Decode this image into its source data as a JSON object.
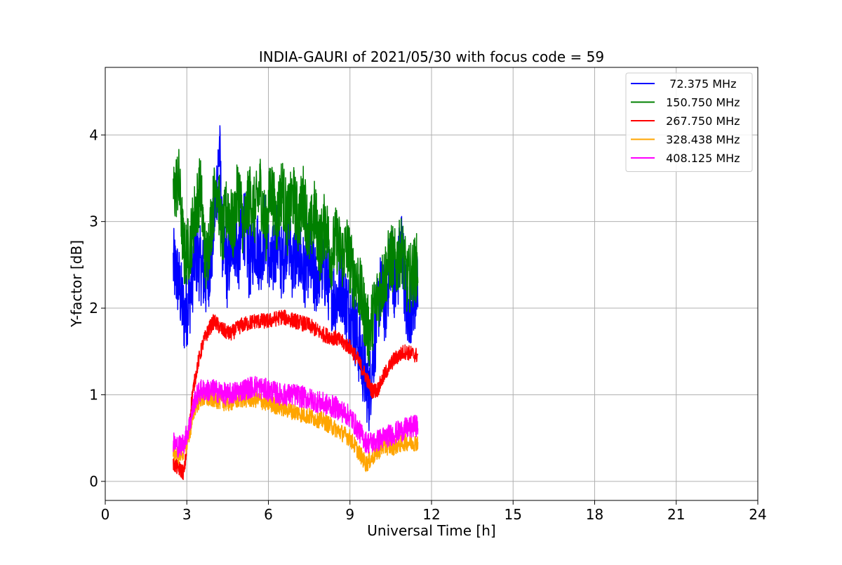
{
  "chart_data": {
    "type": "line",
    "title": "INDIA-GAURI of 2021/05/30 with focus code = 59",
    "xlabel": "Universal Time [h]",
    "ylabel": "Y-factor [dB]",
    "xlim": [
      0,
      24
    ],
    "ylim": [
      -0.22,
      4.78
    ],
    "xticks": [
      0,
      3,
      6,
      9,
      12,
      15,
      18,
      21,
      24
    ],
    "yticks": [
      0,
      1,
      2,
      3,
      4
    ],
    "grid": true,
    "legend_position": "top-right",
    "series": [
      {
        "name": "  72.375 MHz",
        "color": "#0000ff",
        "x": [
          2.5,
          2.7,
          2.9,
          3.1,
          3.3,
          3.5,
          3.7,
          3.9,
          4.1,
          4.2,
          4.3,
          4.5,
          4.7,
          4.9,
          5.1,
          5.3,
          5.5,
          5.7,
          5.9,
          6.1,
          6.3,
          6.5,
          6.7,
          6.9,
          7.1,
          7.3,
          7.5,
          7.7,
          7.9,
          8.1,
          8.3,
          8.5,
          8.7,
          8.9,
          9.1,
          9.3,
          9.5,
          9.7,
          9.9,
          10.1,
          10.3,
          10.5,
          10.7,
          10.9,
          11.1,
          11.3,
          11.5
        ],
        "y": [
          2.5,
          2.3,
          1.9,
          2.1,
          2.6,
          2.5,
          2.3,
          2.6,
          3.4,
          3.9,
          2.8,
          2.4,
          2.9,
          2.6,
          3.0,
          2.5,
          2.8,
          2.6,
          2.9,
          2.4,
          2.8,
          2.5,
          2.9,
          2.5,
          2.7,
          2.4,
          2.6,
          2.3,
          2.5,
          2.4,
          2.2,
          2.1,
          2.3,
          2.0,
          1.9,
          1.6,
          1.3,
          1.0,
          1.6,
          2.2,
          2.0,
          2.6,
          2.2,
          2.8,
          1.9,
          2.1,
          2.2
        ],
        "jitter": 0.45
      },
      {
        "name": " 150.750 MHz",
        "color": "#008000",
        "x": [
          2.5,
          2.7,
          2.9,
          3.1,
          3.3,
          3.5,
          3.7,
          3.9,
          4.1,
          4.3,
          4.5,
          4.7,
          4.9,
          5.1,
          5.3,
          5.5,
          5.7,
          5.9,
          6.1,
          6.3,
          6.5,
          6.7,
          6.9,
          7.1,
          7.3,
          7.5,
          7.7,
          7.9,
          8.1,
          8.3,
          8.5,
          8.7,
          8.9,
          9.1,
          9.3,
          9.5,
          9.7,
          9.9,
          10.1,
          10.3,
          10.5,
          10.7,
          10.9,
          11.1,
          11.3,
          11.5
        ],
        "y": [
          3.3,
          3.5,
          2.6,
          2.7,
          3.1,
          3.4,
          2.5,
          3.0,
          3.5,
          2.8,
          3.2,
          2.9,
          3.4,
          2.9,
          3.3,
          3.1,
          3.4,
          2.9,
          3.4,
          3.0,
          3.4,
          3.0,
          3.3,
          3.0,
          3.3,
          2.8,
          3.1,
          2.7,
          3.0,
          2.6,
          2.8,
          2.6,
          2.7,
          2.4,
          2.3,
          2.0,
          1.7,
          2.0,
          2.2,
          2.4,
          2.6,
          2.5,
          2.7,
          2.3,
          2.4,
          2.5
        ],
        "jitter": 0.4
      },
      {
        "name": " 267.750 MHz",
        "color": "#ff0000",
        "x": [
          2.5,
          2.7,
          2.9,
          3.0,
          3.2,
          3.4,
          3.6,
          3.8,
          4.0,
          4.3,
          4.6,
          5.0,
          5.5,
          6.0,
          6.5,
          7.0,
          7.5,
          8.0,
          8.5,
          9.0,
          9.3,
          9.6,
          9.8,
          10.0,
          10.3,
          10.6,
          11.0,
          11.5
        ],
        "y": [
          0.2,
          0.15,
          0.1,
          0.4,
          1.0,
          1.35,
          1.6,
          1.75,
          1.85,
          1.75,
          1.7,
          1.8,
          1.85,
          1.85,
          1.9,
          1.85,
          1.8,
          1.7,
          1.65,
          1.55,
          1.4,
          1.2,
          1.05,
          1.05,
          1.25,
          1.4,
          1.5,
          1.45
        ],
        "jitter": 0.09
      },
      {
        "name": " 328.438 MHz",
        "color": "#ffa500",
        "x": [
          2.5,
          2.7,
          2.9,
          3.1,
          3.3,
          3.5,
          3.7,
          4.0,
          4.5,
          5.0,
          5.5,
          6.0,
          6.5,
          7.0,
          7.5,
          8.0,
          8.5,
          9.0,
          9.3,
          9.6,
          9.9,
          10.2,
          10.6,
          11.0,
          11.5
        ],
        "y": [
          0.35,
          0.3,
          0.35,
          0.55,
          0.85,
          0.95,
          0.95,
          0.95,
          0.9,
          0.95,
          0.95,
          0.9,
          0.85,
          0.8,
          0.75,
          0.7,
          0.6,
          0.5,
          0.35,
          0.2,
          0.3,
          0.4,
          0.4,
          0.45,
          0.45
        ],
        "jitter": 0.1
      },
      {
        "name": " 408.125 MHz",
        "color": "#ff00ff",
        "x": [
          2.5,
          2.7,
          2.9,
          3.1,
          3.3,
          3.5,
          3.7,
          4.0,
          4.5,
          5.0,
          5.5,
          6.0,
          6.5,
          7.0,
          7.5,
          8.0,
          8.5,
          9.0,
          9.3,
          9.6,
          9.9,
          10.2,
          10.6,
          11.0,
          11.5
        ],
        "y": [
          0.45,
          0.4,
          0.45,
          0.65,
          0.95,
          1.05,
          1.05,
          1.05,
          1.0,
          1.05,
          1.1,
          1.05,
          1.0,
          1.0,
          0.95,
          0.9,
          0.85,
          0.75,
          0.6,
          0.45,
          0.45,
          0.5,
          0.55,
          0.6,
          0.65
        ],
        "jitter": 0.13
      }
    ]
  }
}
